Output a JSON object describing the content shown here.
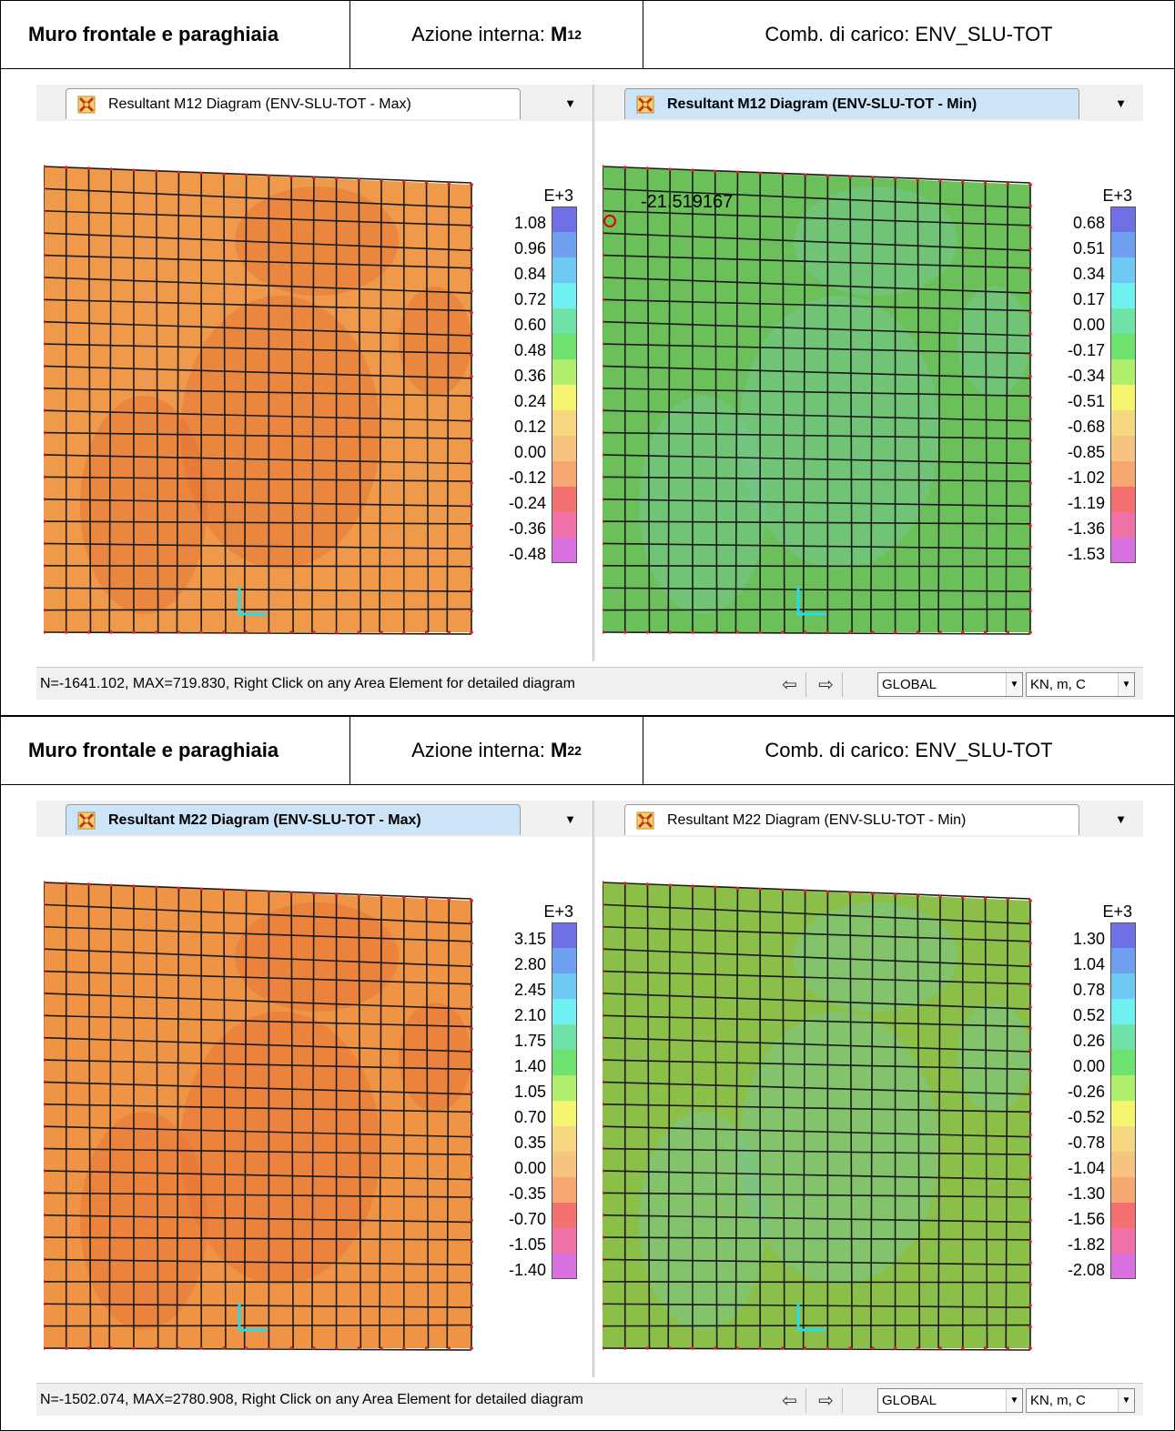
{
  "sections": [
    {
      "header": {
        "title": "Muro frontale e paraghiaia",
        "azione_label": "Azione interna: ",
        "azione_symbol": "M",
        "azione_sub": "12",
        "comb": "Comb. di carico: ENV_SLU-TOT"
      },
      "panes": [
        {
          "tab_label": "Resultant M12 Diagram  (ENV-SLU-TOT - Max)",
          "active": false,
          "legend_unit": "E+3",
          "legend_values": [
            "1.08",
            "0.96",
            "0.84",
            "0.72",
            "0.60",
            "0.48",
            "0.36",
            "0.24",
            "0.12",
            "0.00",
            "-0.12",
            "-0.24",
            "-0.36",
            "-0.48"
          ],
          "base_color": "#ef9a4a",
          "annotation": ""
        },
        {
          "tab_label": "Resultant M12 Diagram  (ENV-SLU-TOT - Min)",
          "active": true,
          "legend_unit": "E+3",
          "legend_values": [
            "0.68",
            "0.51",
            "0.34",
            "0.17",
            "0.00",
            "-0.17",
            "-0.34",
            "-0.51",
            "-0.68",
            "-0.85",
            "-1.02",
            "-1.19",
            "-1.36",
            "-1.53"
          ],
          "base_color": "#6cc05a",
          "annotation": "-21.519167"
        }
      ],
      "status": {
        "text": "N=-1641.102, MAX=719.830, Right Click on any Area Element for detailed diagram",
        "coord_system": "GLOBAL",
        "units": "KN, m, C"
      }
    },
    {
      "header": {
        "title": "Muro frontale e paraghiaia",
        "azione_label": "Azione interna: ",
        "azione_symbol": "M",
        "azione_sub": "22",
        "comb": "Comb. di carico: ENV_SLU-TOT"
      },
      "panes": [
        {
          "tab_label": "Resultant M22 Diagram  (ENV-SLU-TOT - Max)",
          "active": true,
          "legend_unit": "E+3",
          "legend_values": [
            "3.15",
            "2.80",
            "2.45",
            "2.10",
            "1.75",
            "1.40",
            "1.05",
            "0.70",
            "0.35",
            "0.00",
            "-0.35",
            "-0.70",
            "-1.05",
            "-1.40"
          ],
          "base_color": "#ef9444",
          "annotation": ""
        },
        {
          "tab_label": "Resultant M22 Diagram  (ENV-SLU-TOT - Min)",
          "active": false,
          "legend_unit": "E+3",
          "legend_values": [
            "1.30",
            "1.04",
            "0.78",
            "0.52",
            "0.26",
            "0.00",
            "-0.26",
            "-0.52",
            "-0.78",
            "-1.04",
            "-1.30",
            "-1.56",
            "-1.82",
            "-2.08"
          ],
          "base_color": "#8bbf48",
          "annotation": ""
        }
      ],
      "status": {
        "text": "N=-1502.074, MAX=2780.908, Right Click on any Area Element for detailed diagram",
        "coord_system": "GLOBAL",
        "units": "KN, m, C"
      }
    }
  ],
  "legend_colors": [
    "#6f6fe6",
    "#6f9fef",
    "#6fc9f5",
    "#70f0f0",
    "#6fe2a8",
    "#6ee26e",
    "#b0ef6e",
    "#f4f46e",
    "#f6d880",
    "#f6c480",
    "#f6a870",
    "#f47070",
    "#f070a8",
    "#d870e0"
  ],
  "nav_icons": [
    "arrow-left-icon",
    "arrow-right-icon"
  ]
}
